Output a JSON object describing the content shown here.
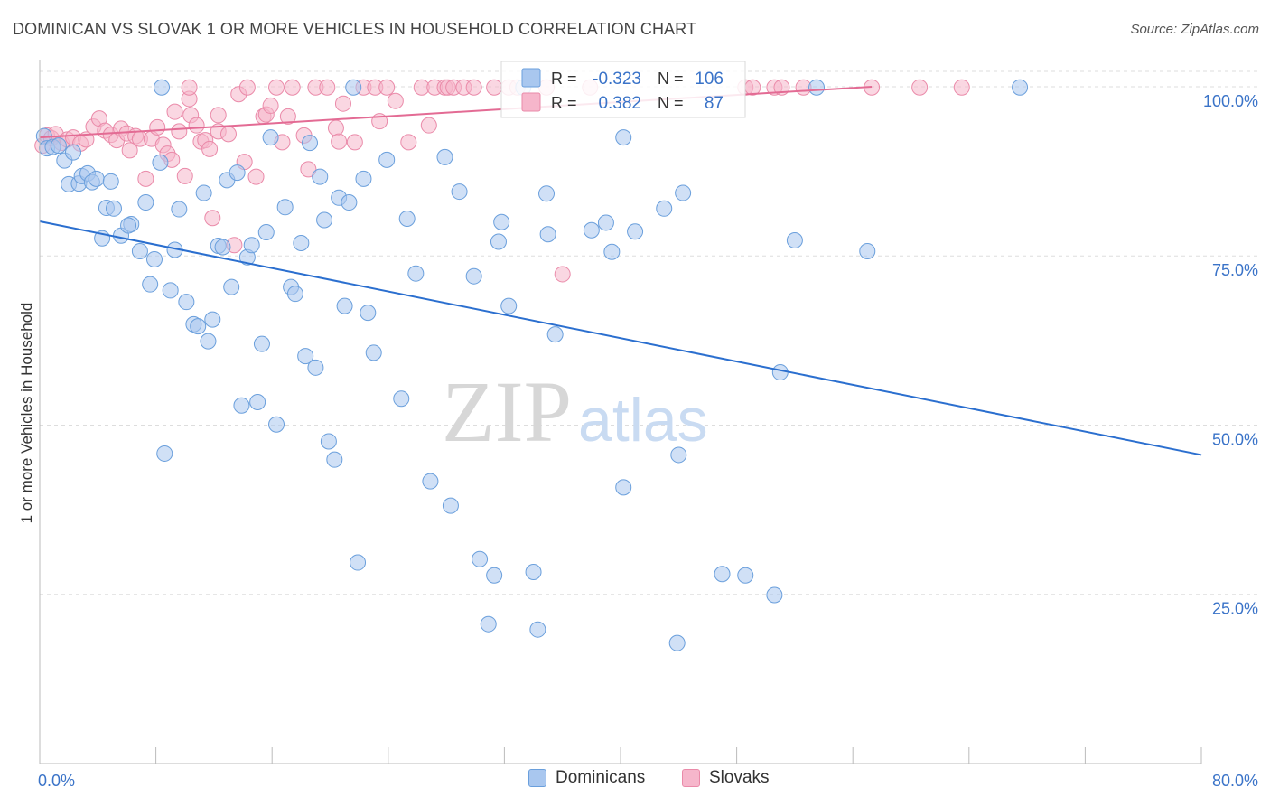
{
  "title": "DOMINICAN VS SLOVAK 1 OR MORE VEHICLES IN HOUSEHOLD CORRELATION CHART",
  "source": "Source: ZipAtlas.com",
  "watermark": {
    "zip": "ZIP",
    "atlas": "atlas"
  },
  "legend": {
    "r_label": "R =",
    "n_label": "N =",
    "rows": [
      {
        "series": "Dominicans",
        "r": "-0.323",
        "n": "106"
      },
      {
        "series": "Slovaks",
        "r": "0.382",
        "n": "87"
      }
    ]
  },
  "bottom_legend": [
    "Dominicans",
    "Slovaks"
  ],
  "colors": {
    "dominicans_fill": "#a9c7ef",
    "dominicans_stroke": "#6a9fdc",
    "dominicans_line": "#2b6fcf",
    "slovaks_fill": "#f6b6cb",
    "slovaks_stroke": "#ea8aa9",
    "slovaks_line": "#e36b94",
    "tick_text": "#3a73c8",
    "grid": "#dddddd"
  },
  "chart_data": {
    "type": "scatter",
    "ylabel": "1 or more Vehicles in Household",
    "xlabel": "",
    "xlim": [
      0,
      80
    ],
    "ylim": [
      0,
      104
    ],
    "x_ticks": [
      "0.0%",
      "80.0%"
    ],
    "y_ticks": [
      {
        "value": 100,
        "label": "100.0%"
      },
      {
        "value": 75,
        "label": "75.0%"
      },
      {
        "value": 50,
        "label": "50.0%"
      },
      {
        "value": 25,
        "label": "25.0%"
      }
    ],
    "grid": "horizontal dashed",
    "series": [
      {
        "name": "Dominicans",
        "trend": {
          "x": [
            0,
            80
          ],
          "y": [
            80.1,
            45.6
          ]
        },
        "points": [
          [
            0.3,
            92.7
          ],
          [
            0.5,
            90.9
          ],
          [
            0.9,
            91.1
          ],
          [
            1.3,
            91.3
          ],
          [
            1.7,
            89.1
          ],
          [
            2.0,
            85.6
          ],
          [
            2.3,
            90.3
          ],
          [
            2.7,
            85.7
          ],
          [
            2.9,
            86.8
          ],
          [
            3.3,
            87.2
          ],
          [
            3.6,
            85.9
          ],
          [
            3.9,
            86.4
          ],
          [
            4.3,
            77.6
          ],
          [
            4.6,
            82.1
          ],
          [
            4.9,
            86.0
          ],
          [
            5.1,
            82.0
          ],
          [
            5.6,
            78.0
          ],
          [
            6.3,
            79.7
          ],
          [
            6.1,
            79.5
          ],
          [
            6.9,
            75.7
          ],
          [
            7.3,
            82.9
          ],
          [
            7.6,
            70.8
          ],
          [
            7.9,
            74.5
          ],
          [
            8.3,
            88.8
          ],
          [
            8.6,
            45.8
          ],
          [
            9.0,
            69.9
          ],
          [
            9.3,
            75.9
          ],
          [
            9.6,
            81.9
          ],
          [
            10.1,
            68.2
          ],
          [
            10.6,
            64.9
          ],
          [
            10.9,
            64.6
          ],
          [
            11.3,
            84.3
          ],
          [
            11.6,
            62.4
          ],
          [
            11.9,
            65.6
          ],
          [
            12.3,
            76.5
          ],
          [
            12.6,
            76.3
          ],
          [
            12.9,
            86.2
          ],
          [
            13.2,
            70.4
          ],
          [
            13.6,
            87.3
          ],
          [
            13.9,
            52.9
          ],
          [
            14.3,
            74.8
          ],
          [
            14.6,
            76.6
          ],
          [
            15.0,
            53.4
          ],
          [
            15.3,
            62.0
          ],
          [
            15.6,
            78.5
          ],
          [
            15.9,
            92.5
          ],
          [
            16.3,
            50.1
          ],
          [
            16.9,
            82.2
          ],
          [
            17.3,
            70.4
          ],
          [
            17.6,
            69.4
          ],
          [
            18.0,
            76.9
          ],
          [
            18.3,
            60.2
          ],
          [
            18.6,
            91.7
          ],
          [
            19.0,
            58.5
          ],
          [
            19.3,
            86.7
          ],
          [
            19.6,
            80.3
          ],
          [
            19.9,
            47.6
          ],
          [
            20.3,
            44.9
          ],
          [
            20.6,
            83.6
          ],
          [
            21.0,
            67.6
          ],
          [
            21.3,
            82.9
          ],
          [
            21.6,
            99.9
          ],
          [
            21.9,
            29.7
          ],
          [
            22.3,
            86.4
          ],
          [
            22.6,
            66.6
          ],
          [
            23.0,
            60.7
          ],
          [
            23.9,
            89.2
          ],
          [
            24.9,
            53.9
          ],
          [
            25.3,
            80.5
          ],
          [
            25.9,
            72.4
          ],
          [
            26.9,
            41.7
          ],
          [
            27.9,
            89.6
          ],
          [
            28.3,
            38.1
          ],
          [
            28.9,
            84.5
          ],
          [
            29.9,
            72.0
          ],
          [
            30.3,
            30.2
          ],
          [
            30.9,
            20.6
          ],
          [
            31.3,
            27.8
          ],
          [
            31.6,
            77.1
          ],
          [
            31.8,
            80.0
          ],
          [
            32.3,
            67.6
          ],
          [
            33.3,
            99.9
          ],
          [
            34.0,
            28.3
          ],
          [
            34.3,
            19.8
          ],
          [
            34.9,
            84.2
          ],
          [
            35.0,
            78.2
          ],
          [
            35.5,
            63.4
          ],
          [
            38.0,
            78.8
          ],
          [
            39.0,
            79.9
          ],
          [
            39.4,
            75.6
          ],
          [
            40.2,
            40.8
          ],
          [
            40.2,
            92.5
          ],
          [
            41.0,
            78.6
          ],
          [
            43.0,
            82.0
          ],
          [
            43.9,
            17.8
          ],
          [
            44.0,
            45.6
          ],
          [
            44.3,
            84.3
          ],
          [
            47.0,
            28.0
          ],
          [
            48.6,
            27.8
          ],
          [
            50.6,
            24.9
          ],
          [
            51.0,
            57.8
          ],
          [
            52.0,
            77.3
          ],
          [
            53.5,
            99.9
          ],
          [
            57.0,
            75.7
          ],
          [
            67.5,
            99.9
          ],
          [
            8.4,
            99.9
          ]
        ]
      },
      {
        "name": "Slovaks",
        "trend": {
          "x": [
            0,
            57.3
          ],
          "y": [
            92.5,
            100.0
          ]
        },
        "points": [
          [
            0.2,
            91.3
          ],
          [
            0.5,
            92.8
          ],
          [
            0.8,
            92.4
          ],
          [
            1.1,
            93.0
          ],
          [
            1.5,
            91.7
          ],
          [
            1.9,
            92.2
          ],
          [
            2.3,
            92.5
          ],
          [
            2.8,
            91.6
          ],
          [
            3.2,
            92.2
          ],
          [
            3.7,
            94.1
          ],
          [
            4.1,
            95.3
          ],
          [
            4.5,
            93.5
          ],
          [
            4.9,
            92.9
          ],
          [
            5.3,
            92.1
          ],
          [
            5.6,
            93.8
          ],
          [
            6.0,
            93.1
          ],
          [
            6.2,
            90.6
          ],
          [
            6.6,
            92.7
          ],
          [
            6.9,
            92.3
          ],
          [
            7.3,
            86.4
          ],
          [
            7.7,
            92.3
          ],
          [
            8.1,
            94.0
          ],
          [
            8.5,
            91.4
          ],
          [
            8.8,
            90.1
          ],
          [
            9.1,
            89.2
          ],
          [
            9.3,
            96.3
          ],
          [
            9.6,
            93.4
          ],
          [
            10.0,
            86.8
          ],
          [
            10.3,
            98.2
          ],
          [
            10.4,
            95.8
          ],
          [
            10.8,
            94.3
          ],
          [
            11.1,
            91.9
          ],
          [
            11.4,
            92.1
          ],
          [
            11.7,
            90.8
          ],
          [
            11.9,
            80.6
          ],
          [
            12.3,
            93.4
          ],
          [
            12.3,
            95.8
          ],
          [
            13.0,
            93.0
          ],
          [
            13.4,
            76.6
          ],
          [
            13.7,
            98.9
          ],
          [
            14.1,
            88.9
          ],
          [
            14.3,
            99.9
          ],
          [
            14.9,
            86.7
          ],
          [
            15.4,
            95.6
          ],
          [
            15.6,
            95.9
          ],
          [
            15.9,
            97.2
          ],
          [
            16.3,
            99.9
          ],
          [
            16.7,
            91.8
          ],
          [
            17.1,
            95.6
          ],
          [
            17.4,
            99.9
          ],
          [
            18.2,
            92.8
          ],
          [
            18.5,
            87.8
          ],
          [
            19.0,
            99.9
          ],
          [
            19.8,
            99.9
          ],
          [
            20.4,
            93.9
          ],
          [
            20.6,
            91.9
          ],
          [
            20.9,
            97.5
          ],
          [
            21.7,
            91.8
          ],
          [
            22.3,
            99.9
          ],
          [
            23.1,
            99.9
          ],
          [
            23.4,
            94.9
          ],
          [
            23.9,
            99.9
          ],
          [
            24.5,
            97.9
          ],
          [
            25.4,
            91.8
          ],
          [
            26.3,
            99.9
          ],
          [
            26.8,
            94.3
          ],
          [
            27.2,
            99.9
          ],
          [
            27.9,
            99.9
          ],
          [
            28.1,
            99.9
          ],
          [
            28.5,
            99.9
          ],
          [
            29.2,
            99.9
          ],
          [
            29.9,
            99.9
          ],
          [
            31.3,
            99.9
          ],
          [
            32.3,
            99.9
          ],
          [
            34.9,
            99.9
          ],
          [
            36.0,
            72.3
          ],
          [
            37.9,
            99.9
          ],
          [
            48.6,
            99.9
          ],
          [
            49.1,
            99.9
          ],
          [
            50.6,
            99.9
          ],
          [
            51.1,
            99.9
          ],
          [
            52.6,
            99.9
          ],
          [
            60.6,
            99.9
          ],
          [
            63.5,
            99.9
          ],
          [
            57.3,
            99.9
          ],
          [
            32.9,
            99.9
          ],
          [
            10.3,
            99.9
          ]
        ]
      }
    ]
  }
}
